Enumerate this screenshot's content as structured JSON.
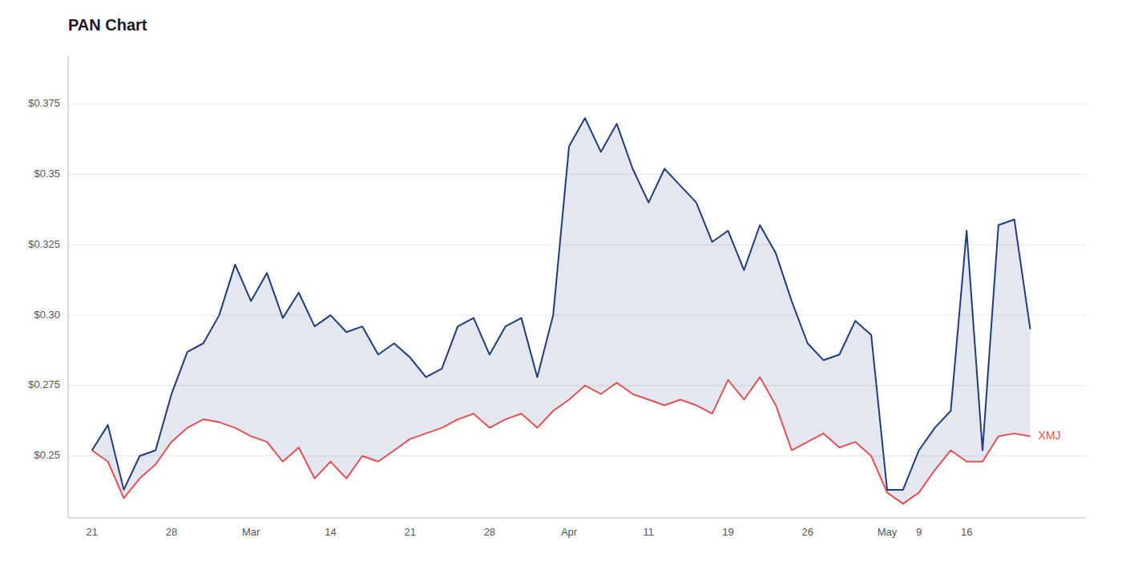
{
  "chart_data": {
    "type": "line",
    "title": "PAN Chart",
    "categories": [
      "21",
      null,
      null,
      null,
      null,
      "28",
      null,
      null,
      null,
      null,
      "Mar",
      null,
      null,
      null,
      null,
      "14",
      null,
      null,
      null,
      null,
      "21",
      null,
      null,
      null,
      null,
      "28",
      null,
      null,
      null,
      null,
      "Apr",
      null,
      null,
      null,
      null,
      "11",
      null,
      null,
      null,
      null,
      "19",
      null,
      null,
      null,
      null,
      "26",
      null,
      null,
      null,
      null,
      "May",
      null,
      "9",
      null,
      null,
      "16",
      null,
      null,
      null,
      null
    ],
    "series": [
      {
        "color": "#1f3d7a",
        "values": [
          0.252,
          0.261,
          0.238,
          0.25,
          0.252,
          0.272,
          0.287,
          0.29,
          0.3,
          0.318,
          0.305,
          0.315,
          0.299,
          0.308,
          0.296,
          0.3,
          0.294,
          0.296,
          0.286,
          0.29,
          0.285,
          0.278,
          0.281,
          0.296,
          0.299,
          0.286,
          0.296,
          0.299,
          0.278,
          0.3,
          0.36,
          0.37,
          0.358,
          0.368,
          0.352,
          0.34,
          0.352,
          0.346,
          0.34,
          0.326,
          0.33,
          0.316,
          0.332,
          0.322,
          0.305,
          0.29,
          0.284,
          0.286,
          0.298,
          0.293,
          0.238,
          0.238,
          0.252,
          0.26,
          0.266,
          0.33,
          0.252,
          0.332,
          0.334,
          0.295
        ]
      },
      {
        "name": "XMJ",
        "color": "#e05252",
        "values": [
          0.252,
          0.248,
          0.235,
          0.242,
          0.247,
          0.255,
          0.26,
          0.263,
          0.262,
          0.26,
          0.257,
          0.255,
          0.248,
          0.253,
          0.242,
          0.248,
          0.242,
          0.25,
          0.248,
          0.252,
          0.256,
          0.258,
          0.26,
          0.263,
          0.265,
          0.26,
          0.263,
          0.265,
          0.26,
          0.266,
          0.27,
          0.275,
          0.272,
          0.276,
          0.272,
          0.27,
          0.268,
          0.27,
          0.268,
          0.265,
          0.277,
          0.27,
          0.278,
          0.268,
          0.252,
          0.255,
          0.258,
          0.253,
          0.255,
          0.25,
          0.237,
          0.233,
          0.237,
          0.245,
          0.252,
          0.248,
          0.248,
          0.257,
          0.258,
          0.257
        ]
      }
    ],
    "ylim": [
      0.228,
      0.392
    ],
    "yticks": [
      {
        "value": 0.25,
        "label": "$0.25"
      },
      {
        "value": 0.275,
        "label": "$0.275"
      },
      {
        "value": 0.3,
        "label": "$0.30"
      },
      {
        "value": 0.325,
        "label": "$0.325"
      },
      {
        "value": 0.35,
        "label": "$0.35"
      },
      {
        "value": 0.375,
        "label": "$0.375"
      }
    ],
    "grid": true
  }
}
